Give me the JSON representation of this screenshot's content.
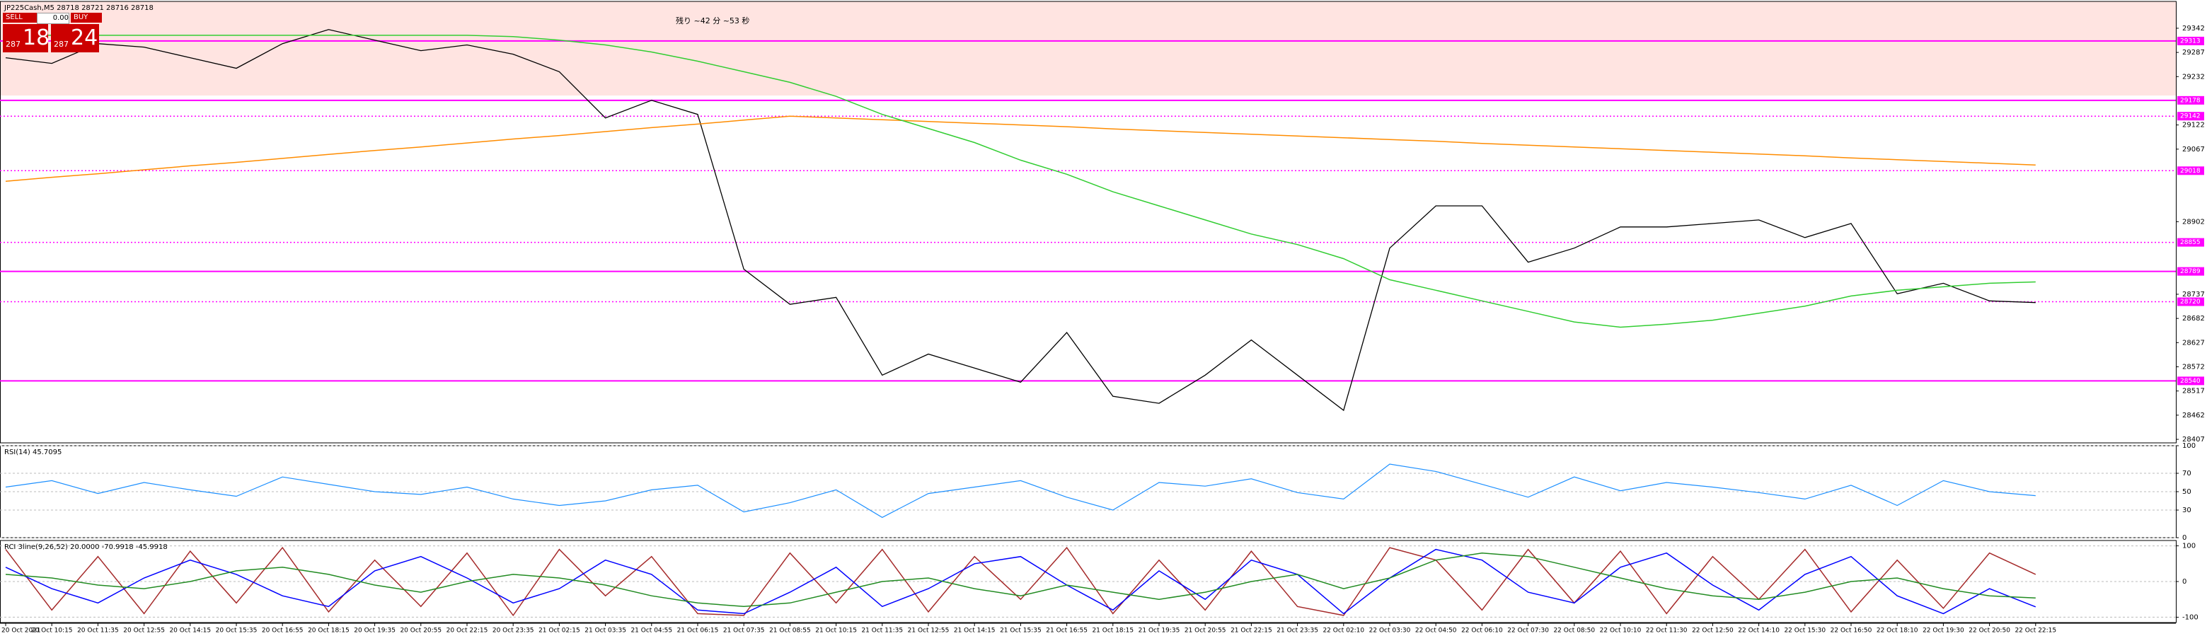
{
  "countdown": "残り ~42 分 ~53 秒",
  "trade_panel": {
    "sell_label": "SELL",
    "buy_label": "BUY",
    "volume": "0.00",
    "sell_prefix": "287",
    "sell_big": "18",
    "buy_prefix": "287",
    "buy_big": "24"
  },
  "chart_data": [
    {
      "type": "line",
      "title": "JP225Cash,M5 28718 28721 28716 28718",
      "categories": [
        "20 Oct 2021",
        "20 Oct 10:15",
        "20 Oct 11:35",
        "20 Oct 12:55",
        "20 Oct 14:15",
        "20 Oct 15:35",
        "20 Oct 16:55",
        "20 Oct 18:15",
        "20 Oct 19:35",
        "20 Oct 20:55",
        "20 Oct 22:15",
        "20 Oct 23:35",
        "21 Oct 02:15",
        "21 Oct 03:35",
        "21 Oct 04:55",
        "21 Oct 06:15",
        "21 Oct 07:35",
        "21 Oct 08:55",
        "21 Oct 10:15",
        "21 Oct 11:35",
        "21 Oct 12:55",
        "21 Oct 14:15",
        "21 Oct 15:35",
        "21 Oct 16:55",
        "21 Oct 18:15",
        "21 Oct 19:35",
        "21 Oct 20:55",
        "21 Oct 22:15",
        "21 Oct 23:35",
        "22 Oct 02:10",
        "22 Oct 03:30",
        "22 Oct 04:50",
        "22 Oct 06:10",
        "22 Oct 07:30",
        "22 Oct 08:50",
        "22 Oct 10:10",
        "22 Oct 11:30",
        "22 Oct 12:50",
        "22 Oct 14:10",
        "22 Oct 15:30",
        "22 Oct 16:50",
        "22 Oct 18:10",
        "22 Oct 19:30",
        "22 Oct 20:50",
        "22 Oct 22:15"
      ],
      "series": [
        {
          "color": "#000000",
          "values": [
            29275,
            29262,
            29307,
            29299,
            29275,
            29251,
            29307,
            29339,
            29315,
            29291,
            29304,
            29283,
            29243,
            29138,
            29178,
            29146,
            28794,
            28714,
            28730,
            28553,
            28601,
            28569,
            28537,
            28650,
            28505,
            28489,
            28553,
            28633,
            28553,
            28473,
            28842,
            28938,
            28938,
            28810,
            28842,
            28890,
            28890,
            28898,
            28906,
            28866,
            28898,
            28738,
            28762,
            28722,
            28718
          ]
        },
        {
          "color": "#ff8c00",
          "values": [
            28994,
            29003,
            29011,
            29020,
            29029,
            29037,
            29046,
            29055,
            29064,
            29072,
            29081,
            29090,
            29098,
            29107,
            29116,
            29124,
            29133,
            29142,
            29138,
            29134,
            29130,
            29126,
            29122,
            29118,
            29113,
            29109,
            29105,
            29101,
            29097,
            29093,
            29089,
            29085,
            29080,
            29076,
            29072,
            29068,
            29064,
            29060,
            29056,
            29052,
            29047,
            29043,
            29039,
            29035,
            29031
          ]
        },
        {
          "color": "#32cd32",
          "values": [
            29326,
            29326,
            29326,
            29326,
            29326,
            29326,
            29326,
            29326,
            29326,
            29326,
            29326,
            29323,
            29315,
            29304,
            29288,
            29267,
            29243,
            29219,
            29187,
            29146,
            29114,
            29082,
            29042,
            29010,
            28970,
            28938,
            28906,
            28874,
            28850,
            28818,
            28770,
            28746,
            28722,
            28698,
            28674,
            28662,
            28669,
            28678,
            28694,
            28710,
            28733,
            28746,
            28754,
            28762,
            28765
          ]
        }
      ],
      "ylim": [
        28399,
        29403
      ],
      "yticks": [
        29342,
        29287,
        29232,
        29122,
        29067,
        28902,
        28737,
        28682,
        28627,
        28572,
        28517,
        28462,
        28407
      ],
      "shaded_range": [
        29189,
        29403
      ],
      "shaded_color": "#ffe4e1",
      "level_color": "#ff00ff",
      "levels": [
        {
          "value": 29313,
          "style": "solid"
        },
        {
          "value": 29178,
          "style": "solid"
        },
        {
          "value": 29142,
          "style": "dotted"
        },
        {
          "value": 29018,
          "style": "dotted"
        },
        {
          "value": 28855,
          "style": "dotted"
        },
        {
          "value": 28789,
          "style": "solid"
        },
        {
          "value": 28720,
          "style": "dotted"
        },
        {
          "value": 28540,
          "style": "solid"
        }
      ]
    },
    {
      "type": "line",
      "title": "RSI(14) 45.7095",
      "color": "#1e90ff",
      "values": [
        55,
        62,
        48,
        60,
        52,
        45,
        66,
        58,
        50,
        47,
        55,
        42,
        35,
        40,
        52,
        57,
        28,
        38,
        52,
        22,
        48,
        55,
        62,
        44,
        30,
        60,
        56,
        64,
        49,
        42,
        80,
        72,
        58,
        44,
        66,
        51,
        60,
        55,
        49,
        42,
        57,
        35,
        62,
        50,
        45.7095
      ],
      "ylim": [
        0,
        100
      ],
      "yticks": [
        100,
        70,
        50,
        30,
        0
      ]
    },
    {
      "type": "line",
      "title": "RCI 3line(9,26,52) 20.0000 -70.9918 -45.9918",
      "series": [
        {
          "color": "#a52a2a",
          "values": [
            90,
            -80,
            70,
            -90,
            85,
            -60,
            95,
            -85,
            60,
            -70,
            80,
            -95,
            90,
            -40,
            70,
            -90,
            -95,
            80,
            -60,
            90,
            -85,
            70,
            -50,
            95,
            -90,
            60,
            -80,
            85,
            -70,
            -95,
            95,
            60,
            -80,
            90,
            -60,
            85,
            -90,
            70,
            -50,
            90,
            -85,
            60,
            -75,
            80,
            20
          ]
        },
        {
          "color": "#0000ff",
          "values": [
            40,
            -20,
            -60,
            10,
            60,
            20,
            -40,
            -70,
            30,
            70,
            10,
            -60,
            -20,
            60,
            20,
            -80,
            -90,
            -30,
            40,
            -70,
            -20,
            50,
            70,
            -10,
            -80,
            30,
            -50,
            60,
            20,
            -90,
            10,
            90,
            60,
            -30,
            -60,
            40,
            80,
            -10,
            -80,
            20,
            70,
            -40,
            -90,
            -20,
            -70.9918
          ]
        },
        {
          "color": "#228b22",
          "values": [
            20,
            10,
            -10,
            -20,
            0,
            30,
            40,
            20,
            -10,
            -30,
            0,
            20,
            10,
            -10,
            -40,
            -60,
            -70,
            -60,
            -30,
            0,
            10,
            -20,
            -40,
            -10,
            -30,
            -50,
            -30,
            0,
            20,
            -20,
            10,
            60,
            80,
            70,
            40,
            10,
            -20,
            -40,
            -50,
            -30,
            0,
            10,
            -20,
            -40,
            -45.9918
          ]
        }
      ],
      "ylim": [
        -115,
        115
      ],
      "yticks": [
        100,
        0,
        -100
      ]
    }
  ]
}
